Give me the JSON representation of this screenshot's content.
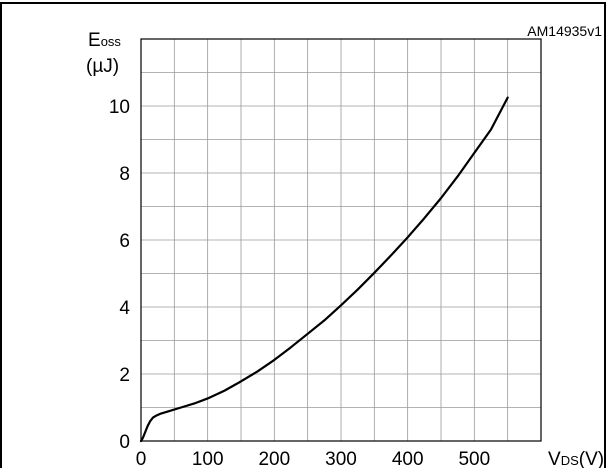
{
  "chart_data": {
    "type": "line",
    "title": "",
    "figure_code": "AM14935v1",
    "ylabel_main": "E",
    "ylabel_sub": "oss",
    "yunit": "(µJ)",
    "xlabel_main": "V",
    "xlabel_sub": "DS",
    "xunit": "(V)",
    "xlim": [
      0,
      600
    ],
    "ylim": [
      0,
      12
    ],
    "xticks": [
      0,
      100,
      200,
      300,
      400,
      500
    ],
    "yticks": [
      0,
      2,
      4,
      6,
      8,
      10
    ],
    "grid": true,
    "series": [
      {
        "name": "",
        "color": "#000000",
        "x": [
          0,
          3,
          6,
          10,
          14,
          18,
          22,
          30,
          40,
          60,
          80,
          100,
          125,
          150,
          175,
          200,
          225,
          250,
          275,
          300,
          325,
          350,
          375,
          400,
          425,
          450,
          475,
          500,
          525,
          550
        ],
        "y": [
          0,
          0.1,
          0.25,
          0.45,
          0.6,
          0.7,
          0.75,
          0.82,
          0.88,
          1.0,
          1.12,
          1.27,
          1.5,
          1.78,
          2.08,
          2.42,
          2.8,
          3.2,
          3.6,
          4.05,
          4.52,
          5.02,
          5.54,
          6.08,
          6.65,
          7.25,
          7.9,
          8.6,
          9.3,
          10.25
        ]
      }
    ]
  }
}
